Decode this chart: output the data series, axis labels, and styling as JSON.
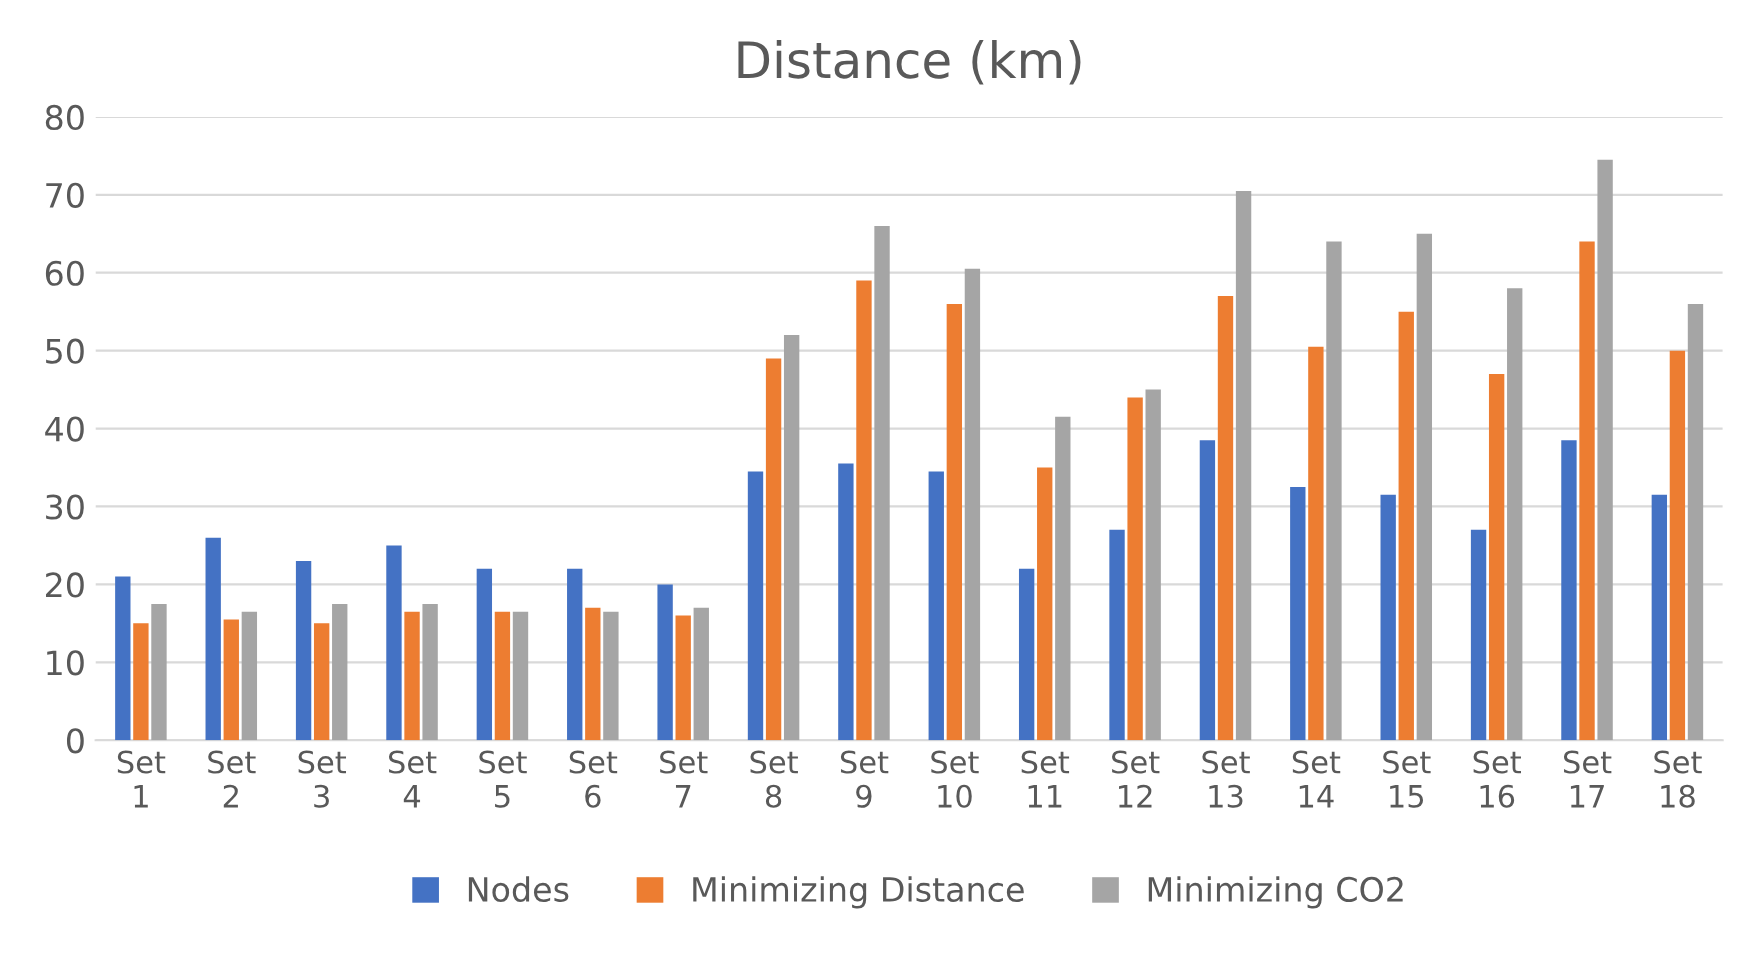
{
  "chart_data": {
    "type": "bar",
    "title": "Distance (km)",
    "categories": [
      "Set 1",
      "Set 2",
      "Set 3",
      "Set 4",
      "Set 5",
      "Set 6",
      "Set 7",
      "Set 8",
      "Set 9",
      "Set 10",
      "Set 11",
      "Set 12",
      "Set 13",
      "Set 14",
      "Set 15",
      "Set 16",
      "Set 17",
      "Set 18"
    ],
    "series": [
      {
        "name": "Nodes",
        "color": "#4472c4",
        "values": [
          21,
          26,
          23,
          25,
          22,
          22,
          20,
          34.5,
          35.5,
          34.5,
          22,
          27,
          38.5,
          32.5,
          31.5,
          27,
          38.5,
          31.5
        ]
      },
      {
        "name": "Minimizing Distance",
        "color": "#ed7d31",
        "values": [
          15,
          15.5,
          15,
          16.5,
          16.5,
          17,
          16,
          49,
          59,
          56,
          35,
          44,
          57,
          50.5,
          55,
          47,
          64,
          50
        ]
      },
      {
        "name": "Minimizing CO2",
        "color": "#a5a5a5",
        "values": [
          17.5,
          16.5,
          17.5,
          17.5,
          16.5,
          16.5,
          17,
          52,
          66,
          60.5,
          41.5,
          45,
          70.5,
          64,
          65,
          58,
          74.5,
          56
        ]
      }
    ],
    "ylim": [
      0,
      80
    ],
    "yticks": [
      0,
      10,
      20,
      30,
      40,
      50,
      60,
      70,
      80
    ],
    "grid": "y",
    "legend": "bottom"
  }
}
